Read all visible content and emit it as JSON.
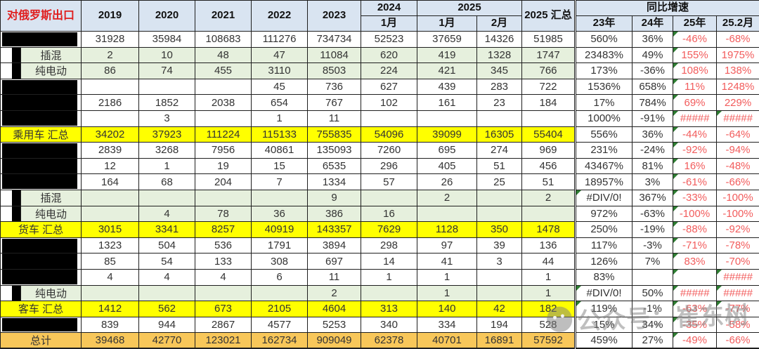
{
  "chart_data": {
    "type": "table",
    "corner_label": "对俄罗斯出口",
    "column_groups": {
      "years": [
        "2019",
        "2020",
        "2021",
        "2022",
        "2023"
      ],
      "y2024": {
        "label": "2024",
        "months": [
          "1月"
        ]
      },
      "y2025": {
        "label": "2025",
        "months": [
          "1月",
          "2月"
        ]
      },
      "total_2025": "2025 汇总",
      "yoy": {
        "label": "同比增速",
        "cols": [
          "23年",
          "24年",
          "25年",
          "25.2月"
        ]
      }
    },
    "legend": {
      "redacted_label": "",
      "error_values": [
        "#####",
        "#DIV/0!"
      ]
    },
    "rows": [
      {
        "label": "",
        "style": "plain",
        "redact": "box",
        "values": [
          "31928",
          "35984",
          "108683",
          "111276",
          "734734",
          "52523",
          "37659",
          "14326",
          "51985",
          "560%",
          "36%",
          "-46%",
          "-68%"
        ],
        "corners": [
          11
        ]
      },
      {
        "label": "插混",
        "style": "green",
        "redact": "sliver",
        "values": [
          "2",
          "10",
          "48",
          "47",
          "11084",
          "620",
          "419",
          "1328",
          "1747",
          "23483%",
          "49%",
          "155%",
          "1975%"
        ],
        "corners": [
          11
        ]
      },
      {
        "label": "纯电动",
        "style": "green",
        "redact": "sliver",
        "values": [
          "86",
          "74",
          "455",
          "3110",
          "8503",
          "224",
          "421",
          "345",
          "766",
          "173%",
          "-36%",
          "108%",
          "138%"
        ],
        "corners": [
          11
        ]
      },
      {
        "label": "",
        "style": "plain",
        "redact": "box-start",
        "values": [
          "",
          "",
          "",
          "45",
          "736",
          "627",
          "439",
          "283",
          "722",
          "1536%",
          "658%",
          "11%",
          "1248%"
        ],
        "corners": [
          11
        ]
      },
      {
        "label": "",
        "style": "plain",
        "redact": "box-mid",
        "values": [
          "2186",
          "1852",
          "2038",
          "654",
          "767",
          "102",
          "161",
          "23",
          "184",
          "17%",
          "784%",
          "69%",
          "229%"
        ],
        "corners": [
          11
        ]
      },
      {
        "label": "",
        "style": "plain",
        "redact": "box-end",
        "values": [
          "",
          "3",
          "",
          "1",
          "11",
          "",
          "",
          "",
          "",
          "1000%",
          "-91%",
          "#####",
          "#####"
        ],
        "corners": [
          11,
          12
        ]
      },
      {
        "label": "乘用车 汇总",
        "style": "sum",
        "redact": "none",
        "values": [
          "34202",
          "37923",
          "111224",
          "115133",
          "755835",
          "54096",
          "39099",
          "16305",
          "55404",
          "556%",
          "36%",
          "-44%",
          "-64%"
        ],
        "corners": [
          11
        ]
      },
      {
        "label": "",
        "style": "plain",
        "redact": "box-start",
        "values": [
          "2839",
          "3268",
          "7956",
          "40861",
          "135093",
          "7260",
          "695",
          "274",
          "969",
          "231%",
          "-24%",
          "-92%",
          "-94%"
        ],
        "corners": [
          11
        ]
      },
      {
        "label": "",
        "style": "plain",
        "redact": "box-mid",
        "values": [
          "12",
          "1",
          "19",
          "15",
          "6535",
          "296",
          "405",
          "51",
          "456",
          "43467%",
          "81%",
          "16%",
          "-48%"
        ],
        "corners": [
          11
        ]
      },
      {
        "label": "",
        "style": "plain",
        "redact": "box-end",
        "values": [
          "164",
          "68",
          "204",
          "7",
          "1334",
          "57",
          "26",
          "25",
          "51",
          "18957%",
          "3%",
          "-61%",
          "-66%"
        ],
        "corners": [
          11
        ]
      },
      {
        "label": "插混",
        "style": "green",
        "redact": "sliver",
        "values": [
          "",
          "",
          "",
          "",
          "9",
          "",
          "2",
          "",
          "2",
          "#DIV/0!",
          "367%",
          "-33%",
          "-100%"
        ],
        "corners": [
          9,
          11
        ]
      },
      {
        "label": "纯电动",
        "style": "green",
        "redact": "sliver",
        "values": [
          "",
          "4",
          "78",
          "36",
          "386",
          "16",
          "",
          "",
          "",
          "972%",
          "-63%",
          "-100%",
          "-100%"
        ],
        "corners": [
          11
        ]
      },
      {
        "label": "货车 汇总",
        "style": "sum",
        "redact": "none",
        "values": [
          "3015",
          "3341",
          "8257",
          "40919",
          "143357",
          "7629",
          "1128",
          "350",
          "1478",
          "250%",
          "-19%",
          "-88%",
          "-92%"
        ],
        "corners": [
          11
        ]
      },
      {
        "label": "",
        "style": "plain",
        "redact": "box-start",
        "values": [
          "1323",
          "504",
          "536",
          "1791",
          "3894",
          "298",
          "97",
          "39",
          "136",
          "117%",
          "-3%",
          "-71%",
          "-78%"
        ],
        "corners": [
          11
        ]
      },
      {
        "label": "",
        "style": "plain",
        "redact": "box-mid",
        "values": [
          "85",
          "54",
          "133",
          "308",
          "697",
          "14",
          "41",
          "3",
          "44",
          "126%",
          "7%",
          "83%",
          "-70%"
        ],
        "corners": [
          11
        ]
      },
      {
        "label": "",
        "style": "plain",
        "redact": "box-end",
        "values": [
          "4",
          "4",
          "4",
          "6",
          "11",
          "1",
          "1",
          "",
          "1",
          "83%",
          "",
          "",
          "#####"
        ],
        "corners": [
          11,
          12
        ]
      },
      {
        "label": "纯电动",
        "style": "green",
        "redact": "sliver",
        "values": [
          "",
          "",
          "",
          "",
          "2",
          "",
          "1",
          "",
          "1",
          "#DIV/0!",
          "50%",
          "#####",
          "#####"
        ],
        "corners": [
          9,
          11,
          12
        ]
      },
      {
        "label": "客车 汇总",
        "style": "sum",
        "redact": "none",
        "values": [
          "1412",
          "562",
          "673",
          "2105",
          "4604",
          "313",
          "140",
          "42",
          "182",
          "119%",
          "-1%",
          "-63%",
          "-77%"
        ],
        "corners": [
          9,
          11,
          12
        ]
      },
      {
        "label": "",
        "style": "plain",
        "redact": "box",
        "values": [
          "839",
          "944",
          "2867",
          "4577",
          "5253",
          "340",
          "334",
          "194",
          "528",
          "15%",
          "34%",
          "-35%",
          "-58%"
        ],
        "corners": [
          11
        ]
      },
      {
        "label": "总计",
        "style": "total",
        "redact": "none",
        "values": [
          "39468",
          "42770",
          "123021",
          "162734",
          "909049",
          "62378",
          "40701",
          "16891",
          "57592",
          "459%",
          "27%",
          "-49%",
          "-66%"
        ],
        "corners": [
          11
        ]
      }
    ],
    "watermark": {
      "text": "公众号：崔东树"
    },
    "colors": {
      "header_bg": "#d9e4f1",
      "ev_row_bg": "#e6f0dd",
      "subtotal_bg": "#ffff00",
      "total_bg": "#f8c75a",
      "negative_text": "#f25c5c",
      "title_text": "#e01f1f",
      "error_corner": "#2e7d32"
    }
  }
}
